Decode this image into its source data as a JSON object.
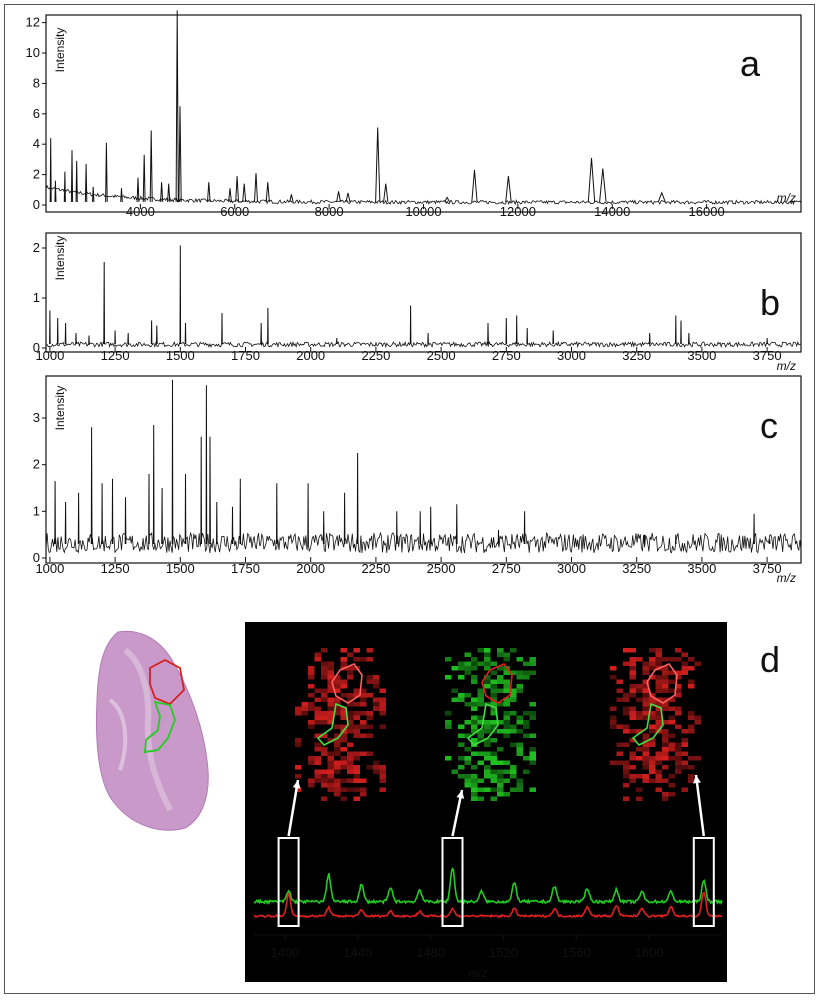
{
  "chart_data": [
    {
      "id": "a",
      "type": "line",
      "panel_label": "a",
      "ylabel": "Intensity",
      "xlabel": "m/z",
      "xlim": [
        2000,
        18000
      ],
      "ylim": [
        0,
        12.5
      ],
      "xticks": [
        "4000",
        "6000",
        "8000",
        "10000",
        "12000",
        "14000",
        "16000"
      ],
      "yticks": [
        "0",
        "2",
        "4",
        "6",
        "8",
        "10",
        "12"
      ],
      "baseline": 0.2,
      "peaks": [
        {
          "x": 2100,
          "y": 4.4
        },
        {
          "x": 2200,
          "y": 1.6
        },
        {
          "x": 2400,
          "y": 2.2
        },
        {
          "x": 2550,
          "y": 3.6
        },
        {
          "x": 2650,
          "y": 2.9
        },
        {
          "x": 2850,
          "y": 2.7
        },
        {
          "x": 3000,
          "y": 1.2
        },
        {
          "x": 3280,
          "y": 4.1
        },
        {
          "x": 3600,
          "y": 1.1
        },
        {
          "x": 3950,
          "y": 1.8
        },
        {
          "x": 4080,
          "y": 3.3
        },
        {
          "x": 4230,
          "y": 4.9
        },
        {
          "x": 4450,
          "y": 1.5
        },
        {
          "x": 4600,
          "y": 1.4
        },
        {
          "x": 4780,
          "y": 12.8
        },
        {
          "x": 4840,
          "y": 6.5
        },
        {
          "x": 5450,
          "y": 1.5
        },
        {
          "x": 5900,
          "y": 1.1
        },
        {
          "x": 6050,
          "y": 1.9
        },
        {
          "x": 6200,
          "y": 1.4
        },
        {
          "x": 6450,
          "y": 2.1
        },
        {
          "x": 6700,
          "y": 1.5
        },
        {
          "x": 7200,
          "y": 0.7
        },
        {
          "x": 8200,
          "y": 0.9
        },
        {
          "x": 8400,
          "y": 0.8
        },
        {
          "x": 9030,
          "y": 5.1
        },
        {
          "x": 9200,
          "y": 1.4
        },
        {
          "x": 10500,
          "y": 0.5
        },
        {
          "x": 11080,
          "y": 2.3
        },
        {
          "x": 11800,
          "y": 1.9
        },
        {
          "x": 13560,
          "y": 3.1
        },
        {
          "x": 13800,
          "y": 2.4
        },
        {
          "x": 15050,
          "y": 0.8
        }
      ]
    },
    {
      "id": "b",
      "type": "line",
      "panel_label": "b",
      "ylabel": "Intensity",
      "xlabel": "m/z",
      "xlim": [
        985,
        3880
      ],
      "ylim": [
        0,
        2.3
      ],
      "xticks": [
        "1000",
        "1250",
        "1500",
        "1750",
        "2000",
        "2250",
        "2500",
        "2750",
        "3000",
        "3250",
        "3500",
        "3750"
      ],
      "yticks": [
        "0",
        "1",
        "2"
      ],
      "baseline": 0.08,
      "peaks": [
        {
          "x": 1000,
          "y": 0.75
        },
        {
          "x": 1030,
          "y": 0.6
        },
        {
          "x": 1060,
          "y": 0.5
        },
        {
          "x": 1100,
          "y": 0.3
        },
        {
          "x": 1150,
          "y": 0.25
        },
        {
          "x": 1208,
          "y": 1.72
        },
        {
          "x": 1250,
          "y": 0.35
        },
        {
          "x": 1300,
          "y": 0.3
        },
        {
          "x": 1390,
          "y": 0.55
        },
        {
          "x": 1410,
          "y": 0.45
        },
        {
          "x": 1500,
          "y": 2.05
        },
        {
          "x": 1520,
          "y": 0.5
        },
        {
          "x": 1660,
          "y": 0.7
        },
        {
          "x": 1810,
          "y": 0.5
        },
        {
          "x": 1836,
          "y": 0.8
        },
        {
          "x": 2100,
          "y": 0.2
        },
        {
          "x": 2383,
          "y": 0.85
        },
        {
          "x": 2450,
          "y": 0.3
        },
        {
          "x": 2680,
          "y": 0.5
        },
        {
          "x": 2750,
          "y": 0.6
        },
        {
          "x": 2790,
          "y": 0.65
        },
        {
          "x": 2830,
          "y": 0.4
        },
        {
          "x": 2930,
          "y": 0.35
        },
        {
          "x": 3300,
          "y": 0.3
        },
        {
          "x": 3400,
          "y": 0.65
        },
        {
          "x": 3420,
          "y": 0.55
        },
        {
          "x": 3450,
          "y": 0.3
        },
        {
          "x": 3750,
          "y": 0.2
        }
      ]
    },
    {
      "id": "c",
      "type": "line",
      "panel_label": "c",
      "ylabel": "Intensity",
      "xlabel": "m/z",
      "xlim": [
        985,
        3880
      ],
      "ylim": [
        0,
        3.9
      ],
      "xticks": [
        "1000",
        "1250",
        "1500",
        "1750",
        "2000",
        "2250",
        "2500",
        "2750",
        "3000",
        "3250",
        "3500",
        "3750"
      ],
      "yticks": [
        "0",
        "1",
        "2",
        "3"
      ],
      "baseline": 0.3,
      "peaks": [
        {
          "x": 1020,
          "y": 1.65
        },
        {
          "x": 1060,
          "y": 1.2
        },
        {
          "x": 1110,
          "y": 1.4
        },
        {
          "x": 1160,
          "y": 2.8
        },
        {
          "x": 1200,
          "y": 1.6
        },
        {
          "x": 1240,
          "y": 1.7
        },
        {
          "x": 1290,
          "y": 1.3
        },
        {
          "x": 1380,
          "y": 1.8
        },
        {
          "x": 1398,
          "y": 2.85
        },
        {
          "x": 1430,
          "y": 1.5
        },
        {
          "x": 1470,
          "y": 3.82
        },
        {
          "x": 1520,
          "y": 1.8
        },
        {
          "x": 1580,
          "y": 2.6
        },
        {
          "x": 1600,
          "y": 3.7
        },
        {
          "x": 1614,
          "y": 2.6
        },
        {
          "x": 1640,
          "y": 1.2
        },
        {
          "x": 1700,
          "y": 1.1
        },
        {
          "x": 1730,
          "y": 1.7
        },
        {
          "x": 1870,
          "y": 1.6
        },
        {
          "x": 1990,
          "y": 1.6
        },
        {
          "x": 2050,
          "y": 1.0
        },
        {
          "x": 2130,
          "y": 1.4
        },
        {
          "x": 2180,
          "y": 2.25
        },
        {
          "x": 2330,
          "y": 1.0
        },
        {
          "x": 2420,
          "y": 1.0
        },
        {
          "x": 2460,
          "y": 1.1
        },
        {
          "x": 2560,
          "y": 1.15
        },
        {
          "x": 2720,
          "y": 0.6
        },
        {
          "x": 2820,
          "y": 1.0
        },
        {
          "x": 3280,
          "y": 0.5
        },
        {
          "x": 3400,
          "y": 0.5
        },
        {
          "x": 3700,
          "y": 0.95
        },
        {
          "x": 3760,
          "y": 0.4
        }
      ]
    },
    {
      "id": "d",
      "type": "line",
      "panel_label": "d",
      "xlabel": "m/z",
      "xlim": [
        1383,
        1640
      ],
      "xticks": [
        "1400",
        "1440",
        "1480",
        "1520",
        "1560",
        "1600"
      ],
      "series": [
        {
          "color": "#22cc22",
          "peaks": [
            {
              "x": 1402,
              "y": 0.3
            },
            {
              "x": 1424,
              "y": 0.8
            },
            {
              "x": 1442,
              "y": 0.5
            },
            {
              "x": 1458,
              "y": 0.4
            },
            {
              "x": 1474,
              "y": 0.35
            },
            {
              "x": 1492,
              "y": 1.0
            },
            {
              "x": 1508,
              "y": 0.3
            },
            {
              "x": 1526,
              "y": 0.55
            },
            {
              "x": 1548,
              "y": 0.45
            },
            {
              "x": 1566,
              "y": 0.4
            },
            {
              "x": 1582,
              "y": 0.35
            },
            {
              "x": 1596,
              "y": 0.3
            },
            {
              "x": 1612,
              "y": 0.3
            },
            {
              "x": 1630,
              "y": 0.6
            }
          ]
        },
        {
          "color": "#e02020",
          "peaks": [
            {
              "x": 1402,
              "y": 0.9
            },
            {
              "x": 1424,
              "y": 0.35
            },
            {
              "x": 1442,
              "y": 0.25
            },
            {
              "x": 1458,
              "y": 0.2
            },
            {
              "x": 1474,
              "y": 0.2
            },
            {
              "x": 1492,
              "y": 0.3
            },
            {
              "x": 1526,
              "y": 0.3
            },
            {
              "x": 1548,
              "y": 0.3
            },
            {
              "x": 1566,
              "y": 0.4
            },
            {
              "x": 1582,
              "y": 0.45
            },
            {
              "x": 1596,
              "y": 0.35
            },
            {
              "x": 1612,
              "y": 0.4
            },
            {
              "x": 1630,
              "y": 1.0
            }
          ]
        }
      ],
      "highlighted_mz": [
        1402,
        1492,
        1630
      ],
      "image_colors": [
        "#e02020",
        "#22cc22",
        "#e02020"
      ]
    }
  ]
}
